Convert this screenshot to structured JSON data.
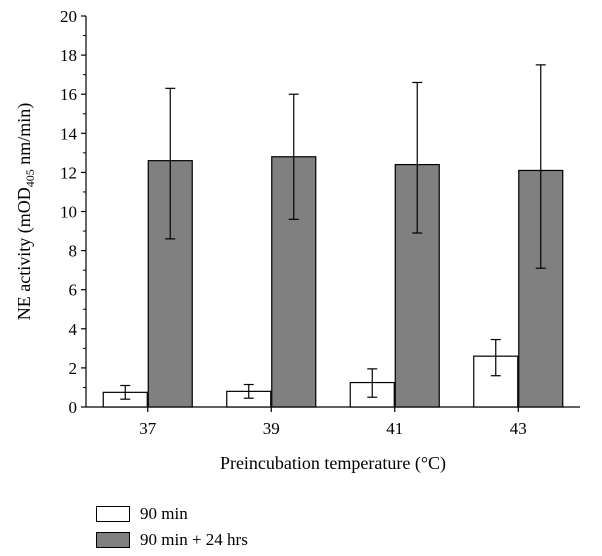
{
  "chart_data": {
    "type": "bar",
    "title": "",
    "xlabel": "Preincubation temperature (°C)",
    "ylabel": {
      "prefix": "NE activity (mOD",
      "subscript": "405",
      "suffix": " nm/min)"
    },
    "ylim": [
      0,
      20
    ],
    "yticks": [
      "0",
      "2",
      "4",
      "6",
      "8",
      "10",
      "12",
      "14",
      "16",
      "18",
      "20"
    ],
    "categories": [
      "37",
      "39",
      "41",
      "43"
    ],
    "series": [
      {
        "name": "90 min",
        "color": "#ffffff",
        "values": [
          0.75,
          0.8,
          1.25,
          2.6
        ],
        "error_low": [
          0.4,
          0.45,
          0.5,
          1.6
        ],
        "error_high": [
          1.1,
          1.15,
          1.95,
          3.45
        ]
      },
      {
        "name": "90 min + 24 hrs",
        "color": "#808080",
        "values": [
          12.6,
          12.8,
          12.4,
          12.1
        ],
        "error_low": [
          8.6,
          9.6,
          8.9,
          7.1
        ],
        "error_high": [
          16.3,
          16.0,
          16.6,
          17.5
        ]
      }
    ],
    "legend_position": "bottom-left",
    "grid": false
  }
}
